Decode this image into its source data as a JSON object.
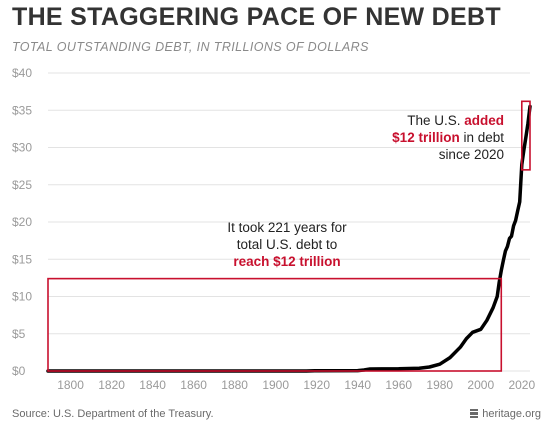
{
  "header": {
    "title": "THE STAGGERING PACE OF NEW DEBT",
    "subtitle": "TOTAL OUTSTANDING DEBT, IN TRILLIONS OF DOLLARS"
  },
  "footer": {
    "source": "Source: U.S. Department of the Treasury.",
    "brand": "heritage.org"
  },
  "colors": {
    "line": "#000000",
    "highlight": "#c8102e",
    "grid": "#e3e3e3",
    "tick": "#9a9a9a"
  },
  "chart_data": {
    "type": "line",
    "title": "THE STAGGERING PACE OF NEW DEBT",
    "subtitle": "TOTAL OUTSTANDING DEBT, IN TRILLIONS OF DOLLARS",
    "xlim": [
      1789,
      2024
    ],
    "ylim": [
      0,
      40
    ],
    "grid": true,
    "x_ticks": [
      "1800",
      "1820",
      "1840",
      "1860",
      "1880",
      "1900",
      "1920",
      "1940",
      "1960",
      "1980",
      "2000",
      "2020"
    ],
    "x_tick_values": [
      1800,
      1820,
      1840,
      1860,
      1880,
      1900,
      1920,
      1940,
      1960,
      1980,
      2000,
      2020
    ],
    "y_ticks": [
      "$0",
      "$5",
      "$10",
      "$15",
      "$20",
      "$25",
      "$30",
      "$35",
      "$40"
    ],
    "y_tick_values": [
      0,
      5,
      10,
      15,
      20,
      25,
      30,
      35,
      40
    ],
    "series": [
      {
        "x": [
          1789,
          1860,
          1865,
          1915,
          1919,
          1940,
          1943,
          1946,
          1960,
          1970,
          1975,
          1980,
          1985,
          1990,
          1993,
          1996,
          2000,
          2003,
          2006,
          2008,
          2009,
          2010,
          2011,
          2012,
          2013,
          2014,
          2015,
          2016,
          2017,
          2018,
          2019,
          2020,
          2021,
          2022,
          2023,
          2024
        ],
        "y": [
          0,
          0,
          0.003,
          0,
          0.03,
          0.05,
          0.14,
          0.27,
          0.29,
          0.38,
          0.54,
          0.91,
          1.8,
          3.2,
          4.35,
          5.2,
          5.6,
          6.8,
          8.5,
          10.0,
          11.9,
          13.5,
          14.8,
          16.1,
          16.7,
          17.8,
          18.1,
          19.5,
          20.2,
          21.5,
          22.7,
          27.7,
          29.6,
          31.4,
          33.2,
          35.5
        ]
      }
    ],
    "highlights": [
      {
        "x": [
          1789,
          2010
        ],
        "y": [
          0,
          12.4
        ]
      },
      {
        "x": [
          2020,
          2024
        ],
        "y": [
          27,
          36.2
        ]
      }
    ],
    "annotations": [
      {
        "lines": [
          [
            {
              "text": "It took 221 years for",
              "red": false
            }
          ],
          [
            {
              "text": "total U.S. debt to",
              "red": false
            }
          ],
          [
            {
              "text": "reach $12 trillion",
              "red": true
            }
          ]
        ]
      },
      {
        "lines": [
          [
            {
              "text": "The U.S. ",
              "red": false
            },
            {
              "text": "added",
              "red": true
            }
          ],
          [
            {
              "text": "$12 trillion",
              "red": true
            },
            {
              "text": " in debt",
              "red": false
            }
          ],
          [
            {
              "text": "since 2020",
              "red": false
            }
          ]
        ]
      }
    ]
  }
}
